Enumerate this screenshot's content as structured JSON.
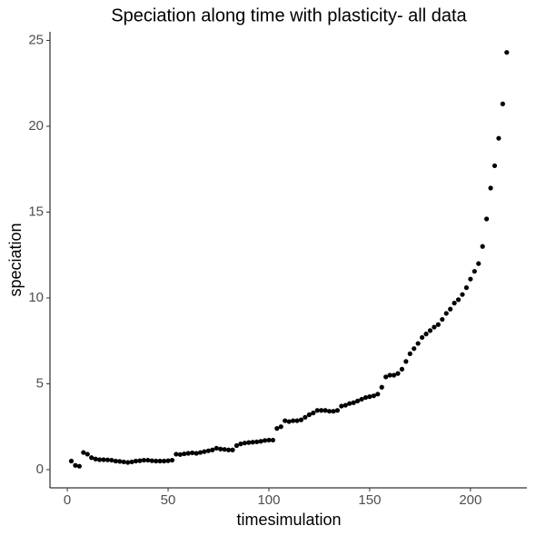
{
  "chart_data": {
    "type": "scatter",
    "title": "Speciation along time with plasticity- all data",
    "x_label": "timesimulation",
    "y_label": "speciation",
    "color": "#000000",
    "grid": false,
    "xlim": [
      -8.6,
      228
    ],
    "ylim": [
      -1.06,
      25.5
    ],
    "xticks": [
      0,
      50,
      100,
      150,
      200
    ],
    "yticks": [
      0,
      5,
      10,
      15,
      20,
      25
    ],
    "x": [
      2,
      4,
      6,
      8,
      10,
      12,
      14,
      16,
      18,
      20,
      22,
      24,
      26,
      28,
      30,
      32,
      34,
      36,
      38,
      40,
      42,
      44,
      46,
      48,
      50,
      52,
      54,
      56,
      58,
      60,
      62,
      64,
      66,
      68,
      70,
      72,
      74,
      76,
      78,
      80,
      82,
      84,
      86,
      88,
      90,
      92,
      94,
      96,
      98,
      100,
      102,
      104,
      106,
      108,
      110,
      112,
      114,
      116,
      118,
      120,
      122,
      124,
      126,
      128,
      130,
      132,
      134,
      136,
      138,
      140,
      142,
      144,
      146,
      148,
      150,
      152,
      154,
      156,
      158,
      160,
      162,
      164,
      166,
      168,
      170,
      172,
      174,
      176,
      178,
      180,
      182,
      184,
      186,
      188,
      190,
      192,
      194,
      196,
      198,
      200,
      202,
      204,
      206,
      208,
      210,
      212,
      214,
      216,
      218
    ],
    "values": [
      0.5,
      0.25,
      0.2,
      1.0,
      0.9,
      0.7,
      0.62,
      0.58,
      0.58,
      0.57,
      0.55,
      0.5,
      0.48,
      0.45,
      0.42,
      0.45,
      0.5,
      0.52,
      0.55,
      0.55,
      0.52,
      0.5,
      0.5,
      0.5,
      0.52,
      0.55,
      0.9,
      0.88,
      0.92,
      0.95,
      0.98,
      0.95,
      1.0,
      1.05,
      1.1,
      1.15,
      1.25,
      1.2,
      1.18,
      1.15,
      1.15,
      1.4,
      1.5,
      1.55,
      1.58,
      1.6,
      1.62,
      1.65,
      1.7,
      1.72,
      1.72,
      2.4,
      2.5,
      2.85,
      2.8,
      2.85,
      2.85,
      2.9,
      3.05,
      3.2,
      3.3,
      3.45,
      3.45,
      3.45,
      3.4,
      3.4,
      3.45,
      3.7,
      3.75,
      3.85,
      3.9,
      4.0,
      4.1,
      4.2,
      4.25,
      4.3,
      4.4,
      4.8,
      5.4,
      5.5,
      5.5,
      5.6,
      5.85,
      6.3,
      6.75,
      7.05,
      7.35,
      7.7,
      7.9,
      8.1,
      8.3,
      8.45,
      8.75,
      9.1,
      9.35,
      9.7,
      9.9,
      10.2,
      10.6,
      11.1,
      11.55,
      12.0,
      13.0,
      14.6,
      16.4,
      17.7,
      19.3,
      21.3,
      24.3
    ]
  }
}
